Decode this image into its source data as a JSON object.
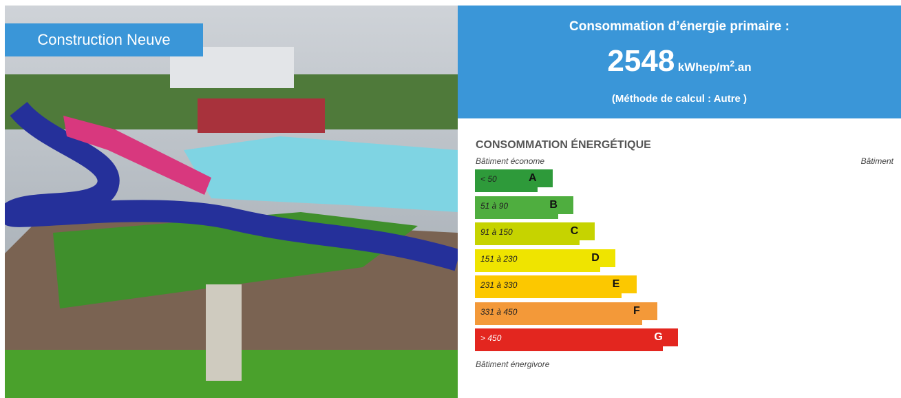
{
  "photo": {
    "badge": "Construction Neuve"
  },
  "header": {
    "title": "Consommation d’énergie primaire :",
    "value": "2548",
    "unit_base": "kWhep/m",
    "unit_sup": "2",
    "unit_tail": ".an",
    "method": "(Méthode de calcul : Autre )"
  },
  "scale": {
    "title": "CONSOMMATION ÉNERGÉTIQUE",
    "top_left": "Bâtiment économe",
    "top_right": "Bâtiment",
    "bottom": "Bâtiment énergivore",
    "classes": [
      {
        "range": "< 50",
        "letter": "A",
        "color": "#2e9a3a"
      },
      {
        "range": "51 à 90",
        "letter": "B",
        "color": "#4fae3f"
      },
      {
        "range": "91 à 150",
        "letter": "C",
        "color": "#c6d300"
      },
      {
        "range": "151 à 230",
        "letter": "D",
        "color": "#efe400"
      },
      {
        "range": "231 à 330",
        "letter": "E",
        "color": "#fcc800"
      },
      {
        "range": "331 à 450",
        "letter": "F",
        "color": "#f39939"
      },
      {
        "range": "> 450",
        "letter": "G",
        "color": "#e3261f"
      }
    ]
  }
}
